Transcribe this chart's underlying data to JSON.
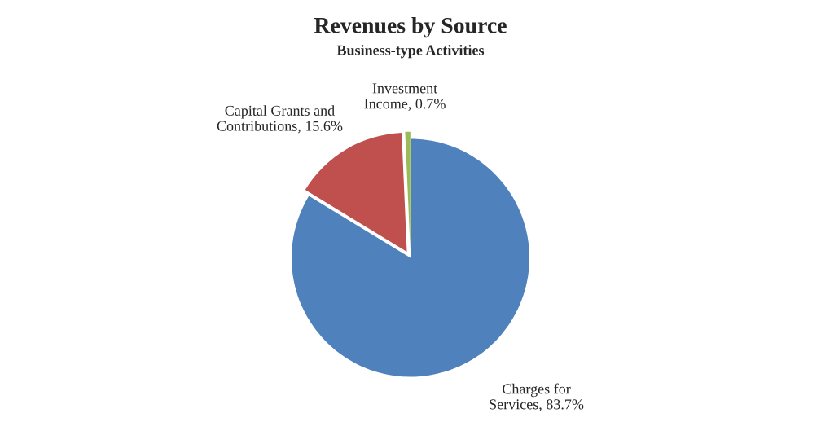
{
  "chart_data": {
    "type": "pie",
    "title": "Revenues by Source",
    "subtitle": "Business-type Activities",
    "categories": [
      "Charges for Services",
      "Capital Grants and Contributions",
      "Investment Income"
    ],
    "values": [
      83.7,
      15.6,
      0.7
    ],
    "value_labels": [
      "83.7%",
      "15.6%",
      "0.7%"
    ],
    "colors": [
      "#4f81bd",
      "#c0504d",
      "#9bbb59"
    ],
    "legend": false
  }
}
